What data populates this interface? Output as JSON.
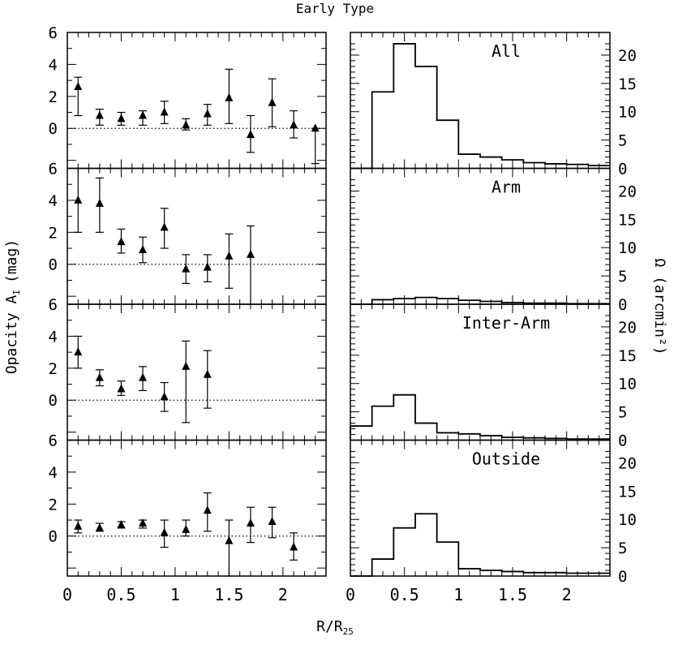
{
  "chart_data": {
    "type": "scatter",
    "title": "Early Type",
    "xlabel": "R/R",
    "xlabel_sub": "25",
    "ylabel_left": "Opacity A",
    "ylabel_left_sub": "I",
    "ylabel_left_unit": "(mag)",
    "ylabel_right": "Ω (arcmin²)",
    "xlim": [
      0,
      2.4
    ],
    "ylim_opacity": [
      -2.5,
      6
    ],
    "ylim_area": [
      0,
      24
    ],
    "x_ticks": [
      "0",
      "0.5",
      "1",
      "1.5",
      "2"
    ],
    "x_tick_values": [
      0,
      0.5,
      1,
      1.5,
      2
    ],
    "y_ticks_opacity": [
      "0",
      "2",
      "4",
      "6"
    ],
    "y_tick_values_opacity": [
      0,
      2,
      4,
      6
    ],
    "y_ticks_area": [
      "0",
      "5",
      "10",
      "15",
      "20"
    ],
    "y_tick_values_area": [
      0,
      5,
      10,
      15,
      20
    ],
    "reference_line": 0,
    "panels": [
      {
        "name": "All",
        "points": [
          {
            "x": 0.1,
            "y": 2.6,
            "lo": 0.8,
            "hi": 3.2
          },
          {
            "x": 0.3,
            "y": 0.8,
            "lo": 0.2,
            "hi": 1.2
          },
          {
            "x": 0.5,
            "y": 0.6,
            "lo": 0.2,
            "hi": 1.0
          },
          {
            "x": 0.7,
            "y": 0.8,
            "lo": 0.2,
            "hi": 1.1
          },
          {
            "x": 0.9,
            "y": 1.0,
            "lo": 0.3,
            "hi": 1.7
          },
          {
            "x": 1.1,
            "y": 0.2,
            "lo": -0.1,
            "hi": 0.6
          },
          {
            "x": 1.3,
            "y": 0.9,
            "lo": 0.2,
            "hi": 1.5
          },
          {
            "x": 1.5,
            "y": 1.9,
            "lo": 0.3,
            "hi": 3.7
          },
          {
            "x": 1.7,
            "y": -0.4,
            "lo": -1.5,
            "hi": 0.8
          },
          {
            "x": 1.9,
            "y": 1.6,
            "lo": 0.1,
            "hi": 3.1
          },
          {
            "x": 2.1,
            "y": 0.2,
            "lo": -0.6,
            "hi": 1.1
          },
          {
            "x": 2.3,
            "y": 0.0,
            "lo": -2.2,
            "hi": 0.0
          }
        ],
        "hist": [
          0,
          13.5,
          22,
          18,
          8.5,
          2.5,
          2,
          1.5,
          1,
          0.8,
          0.7,
          0.5
        ]
      },
      {
        "name": "Arm",
        "points": [
          {
            "x": 0.1,
            "y": 4.0,
            "lo": 2.0,
            "hi": 6.0
          },
          {
            "x": 0.3,
            "y": 3.8,
            "lo": 2.0,
            "hi": 5.4
          },
          {
            "x": 0.5,
            "y": 1.4,
            "lo": 0.7,
            "hi": 2.2
          },
          {
            "x": 0.7,
            "y": 0.9,
            "lo": 0.1,
            "hi": 1.7
          },
          {
            "x": 0.9,
            "y": 2.3,
            "lo": 1.0,
            "hi": 3.5
          },
          {
            "x": 1.1,
            "y": -0.3,
            "lo": -1.2,
            "hi": 0.6
          },
          {
            "x": 1.3,
            "y": -0.2,
            "lo": -1.1,
            "hi": 0.6
          },
          {
            "x": 1.5,
            "y": 0.5,
            "lo": -1.5,
            "hi": 1.9
          },
          {
            "x": 1.7,
            "y": 0.6,
            "lo": -2.5,
            "hi": 2.4
          }
        ],
        "hist": [
          0,
          0.8,
          1,
          1.2,
          1,
          0.7,
          0.5,
          0.3,
          0.2,
          0.2,
          0.1,
          0.1
        ]
      },
      {
        "name": "Inter-Arm",
        "points": [
          {
            "x": 0.1,
            "y": 3.0,
            "lo": 2.0,
            "hi": 4.0
          },
          {
            "x": 0.3,
            "y": 1.4,
            "lo": 0.9,
            "hi": 1.9
          },
          {
            "x": 0.5,
            "y": 0.7,
            "lo": 0.3,
            "hi": 1.2
          },
          {
            "x": 0.7,
            "y": 1.4,
            "lo": 0.6,
            "hi": 2.1
          },
          {
            "x": 0.9,
            "y": 0.2,
            "lo": -0.7,
            "hi": 1.1
          },
          {
            "x": 1.1,
            "y": 2.1,
            "lo": -1.4,
            "hi": 3.7
          },
          {
            "x": 1.3,
            "y": 1.6,
            "lo": -0.5,
            "hi": 3.1
          }
        ],
        "hist": [
          2.5,
          6,
          8,
          3,
          1.3,
          1.1,
          0.8,
          0.5,
          0.4,
          0.3,
          0.2,
          0.2
        ]
      },
      {
        "name": "Outside",
        "points": [
          {
            "x": 0.1,
            "y": 0.6,
            "lo": 0.2,
            "hi": 1.0
          },
          {
            "x": 0.3,
            "y": 0.5,
            "lo": 0.3,
            "hi": 0.8
          },
          {
            "x": 0.5,
            "y": 0.7,
            "lo": 0.5,
            "hi": 0.9
          },
          {
            "x": 0.7,
            "y": 0.8,
            "lo": 0.5,
            "hi": 1.0
          },
          {
            "x": 0.9,
            "y": 0.2,
            "lo": -0.7,
            "hi": 1.0
          },
          {
            "x": 1.1,
            "y": 0.4,
            "lo": 0.0,
            "hi": 1.0
          },
          {
            "x": 1.3,
            "y": 1.6,
            "lo": 0.3,
            "hi": 2.7
          },
          {
            "x": 1.5,
            "y": -0.3,
            "lo": -2.5,
            "hi": 1.0
          },
          {
            "x": 1.7,
            "y": 0.8,
            "lo": -0.4,
            "hi": 1.8
          },
          {
            "x": 1.9,
            "y": 0.9,
            "lo": -0.1,
            "hi": 1.8
          },
          {
            "x": 2.1,
            "y": -0.7,
            "lo": -1.5,
            "hi": 0.2
          }
        ],
        "hist": [
          0,
          3,
          8.5,
          11,
          6,
          1.3,
          1,
          0.8,
          0.6,
          0.6,
          0.5,
          0.5
        ]
      }
    ]
  }
}
